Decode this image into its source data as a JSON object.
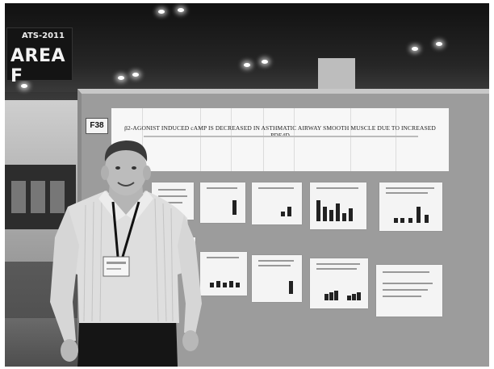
{
  "signs": {
    "conference": "ATS-2011",
    "area": "AREA F"
  },
  "board": {
    "number": "F38",
    "title": "β2-AGONIST INDUCED cAMP IS DECREASED IN ASTHMATIC AIRWAY SMOOTH MUSCLE DUE TO INCREASED PDE4D"
  }
}
